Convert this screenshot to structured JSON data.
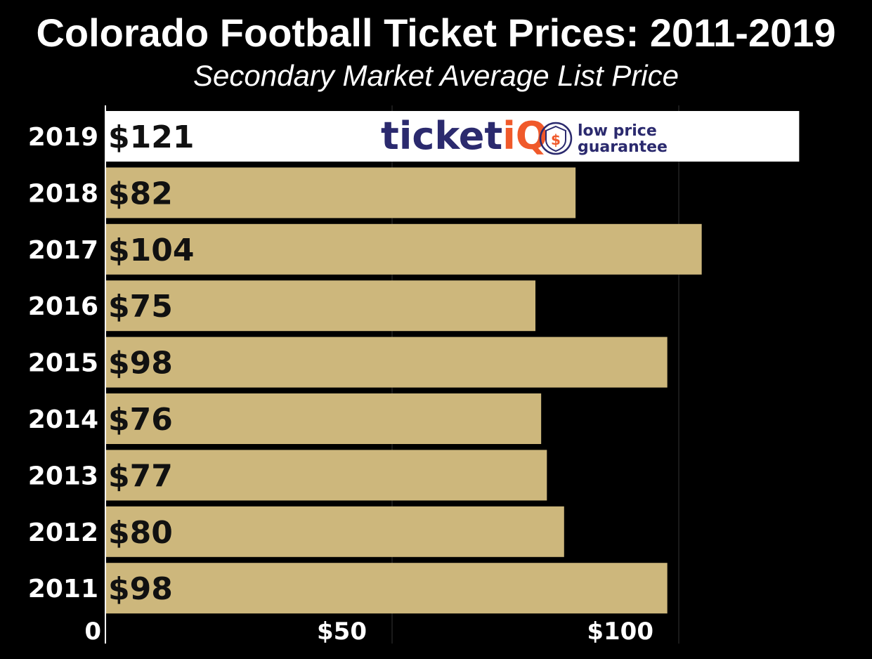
{
  "chart_data": {
    "type": "bar",
    "orientation": "horizontal",
    "title": "Colorado Football Ticket Prices: 2011-2019",
    "subtitle": "Secondary Market Average List Price",
    "categories": [
      "2019",
      "2018",
      "2017",
      "2016",
      "2015",
      "2014",
      "2013",
      "2012",
      "2011"
    ],
    "values": [
      121,
      82,
      104,
      75,
      98,
      76,
      77,
      80,
      98
    ],
    "data_labels": [
      "$121",
      "$82",
      "$104",
      "$75",
      "$98",
      "$76",
      "$77",
      "$80",
      "$98"
    ],
    "x_ticks": [
      0,
      50,
      100
    ],
    "x_tick_labels": [
      "0",
      "$50",
      "$100"
    ],
    "xlim": [
      0,
      130
    ],
    "xlabel": "",
    "ylabel": "",
    "grid": true,
    "legend": "none",
    "highlight_index": 0
  },
  "colors": {
    "background": "#000000",
    "bar": "#CDB77C",
    "highlight_bar": "#FFFFFF",
    "gridline": "#333333",
    "axis": "#FFFFFF",
    "text": "#FFFFFF",
    "bar_label": "#111111",
    "logo_navy": "#2B2A6E",
    "logo_orange": "#F0592A"
  },
  "logo": {
    "brand_main": "ticket",
    "brand_i": "i",
    "brand_q": "Q",
    "tagline_line1": "low price",
    "tagline_line2": "guarantee",
    "badge_symbol": "$",
    "icon": "shield-dollar-icon"
  }
}
